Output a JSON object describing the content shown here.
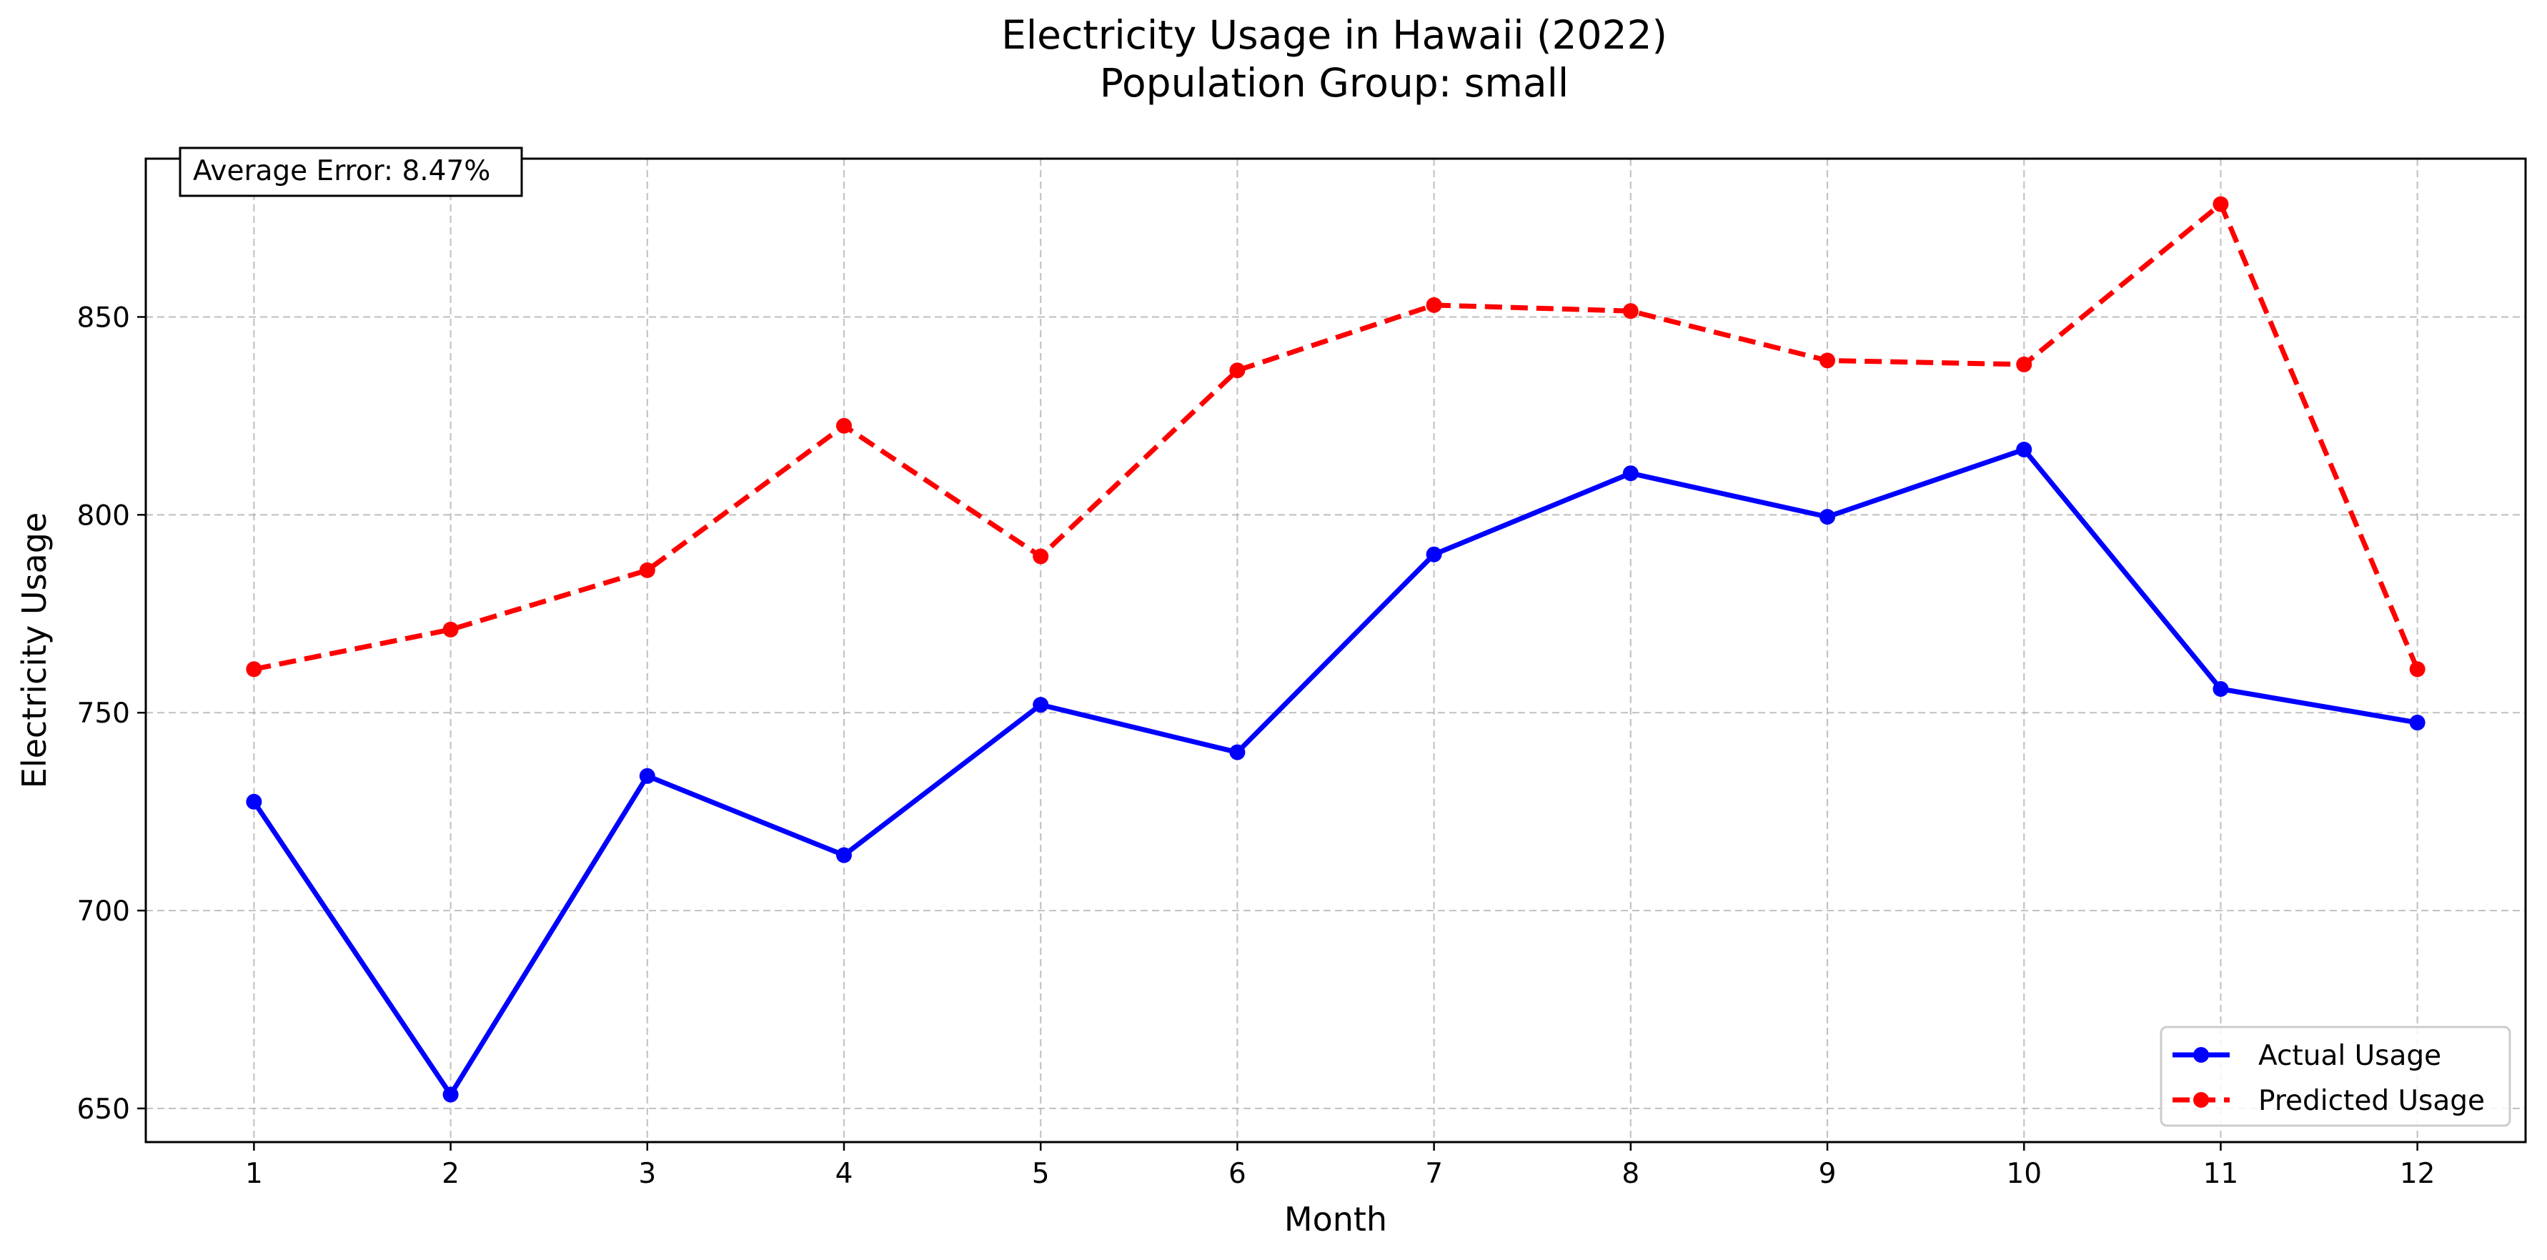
{
  "chart_data": {
    "type": "line",
    "title": "Electricity Usage in Hawaii (2022)",
    "subtitle": "Population Group: small",
    "xlabel": "Month",
    "ylabel": "Electricity Usage",
    "x": [
      1,
      2,
      3,
      4,
      5,
      6,
      7,
      8,
      9,
      10,
      11,
      12
    ],
    "xlim": [
      0.45,
      12.55
    ],
    "ylim": [
      641.5,
      890
    ],
    "yticks": [
      650,
      700,
      750,
      800,
      850
    ],
    "grid": true,
    "legend_position": "lower-right",
    "annotation": "Average Error: 8.47%",
    "series": [
      {
        "name": "Actual Usage",
        "color": "#0000ff",
        "style": "solid",
        "marker": "circle",
        "values": [
          727.5,
          653.5,
          734.0,
          714.0,
          752.0,
          740.0,
          790.0,
          810.5,
          799.5,
          816.5,
          756.0,
          747.5
        ]
      },
      {
        "name": "Predicted Usage",
        "color": "#ff0000",
        "style": "dashed",
        "marker": "circle",
        "values": [
          761.0,
          771.0,
          786.0,
          822.5,
          789.5,
          836.5,
          853.0,
          851.5,
          839.0,
          838.0,
          878.5,
          761.0
        ]
      }
    ]
  }
}
